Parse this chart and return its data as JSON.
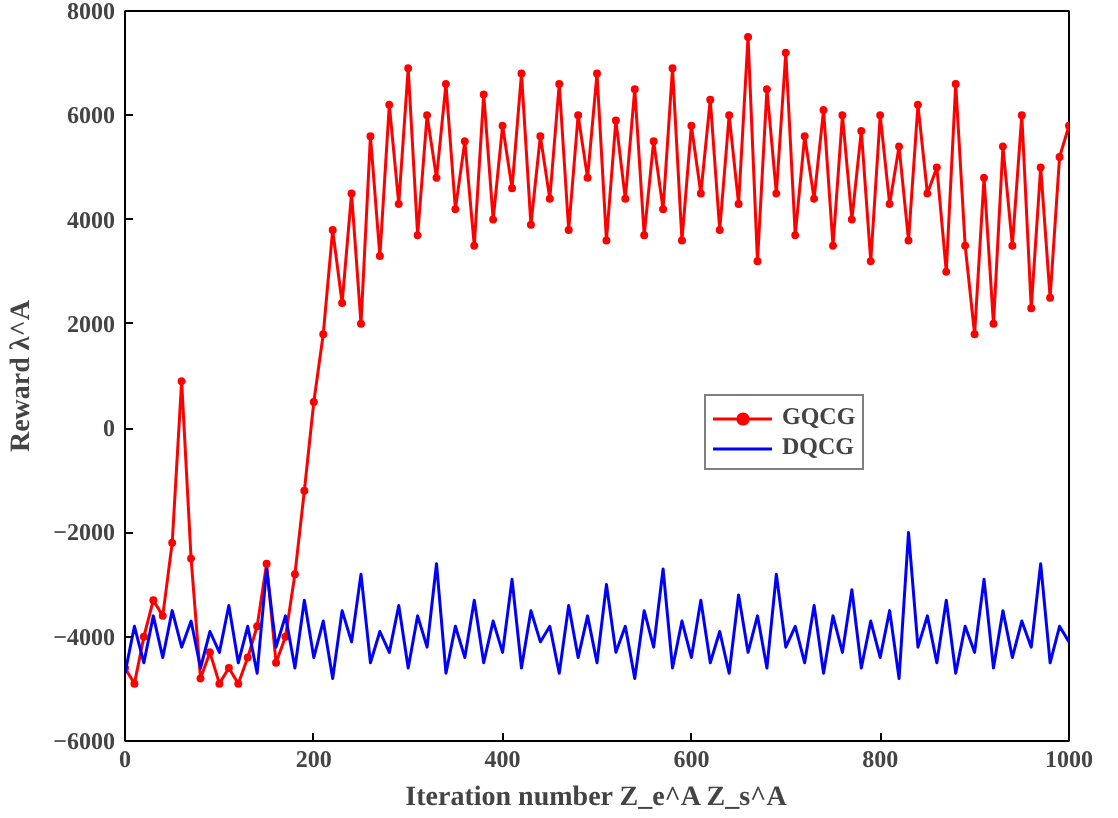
{
  "chart_data": {
    "type": "line",
    "xlabel": "Iteration number Z_e^A Z_s^A",
    "ylabel": "Reward λ^A",
    "x": [
      0,
      10,
      20,
      30,
      40,
      50,
      60,
      70,
      80,
      90,
      100,
      110,
      120,
      130,
      140,
      150,
      160,
      170,
      180,
      190,
      200,
      210,
      220,
      230,
      240,
      250,
      260,
      270,
      280,
      290,
      300,
      310,
      320,
      330,
      340,
      350,
      360,
      370,
      380,
      390,
      400,
      410,
      420,
      430,
      440,
      450,
      460,
      470,
      480,
      490,
      500,
      510,
      520,
      530,
      540,
      550,
      560,
      570,
      580,
      590,
      600,
      610,
      620,
      630,
      640,
      650,
      660,
      670,
      680,
      690,
      700,
      710,
      720,
      730,
      740,
      750,
      760,
      770,
      780,
      790,
      800,
      810,
      820,
      830,
      840,
      850,
      860,
      870,
      880,
      890,
      900,
      910,
      920,
      930,
      940,
      950,
      960,
      970,
      980,
      990,
      1000
    ],
    "series": [
      {
        "name": "GQCG",
        "color": "#ff0000",
        "marker": "circle",
        "values": [
          -4600,
          -4900,
          -4000,
          -3300,
          -3600,
          -2200,
          900,
          -2500,
          -4800,
          -4300,
          -4900,
          -4600,
          -4900,
          -4400,
          -3800,
          -2600,
          -4500,
          -4000,
          -2800,
          -1200,
          500,
          1800,
          3800,
          2400,
          4500,
          2000,
          5600,
          3300,
          6200,
          4300,
          6900,
          3700,
          6000,
          4800,
          6600,
          4200,
          5500,
          3500,
          6400,
          4000,
          5800,
          4600,
          6800,
          3900,
          5600,
          4400,
          6600,
          3800,
          6000,
          4800,
          6800,
          3600,
          5900,
          4400,
          6500,
          3700,
          5500,
          4200,
          6900,
          3600,
          5800,
          4500,
          6300,
          3800,
          6000,
          4300,
          7500,
          3200,
          6500,
          4500,
          7200,
          3700,
          5600,
          4400,
          6100,
          3500,
          6000,
          4000,
          5700,
          3200,
          6000,
          4300,
          5400,
          3600,
          6200,
          4500,
          5000,
          3000,
          6600,
          3500,
          1800,
          4800,
          2000,
          5400,
          3500,
          6000,
          2300,
          5000,
          2500,
          5200,
          5800
        ]
      },
      {
        "name": "DQCG",
        "color": "#0000ff",
        "marker": "none",
        "values": [
          -4700,
          -3800,
          -4500,
          -3600,
          -4400,
          -3500,
          -4200,
          -3700,
          -4600,
          -3900,
          -4300,
          -3400,
          -4500,
          -3800,
          -4700,
          -2700,
          -4200,
          -3600,
          -4600,
          -3300,
          -4400,
          -3700,
          -4800,
          -3500,
          -4100,
          -2800,
          -4500,
          -3900,
          -4300,
          -3400,
          -4600,
          -3600,
          -4200,
          -2600,
          -4700,
          -3800,
          -4400,
          -3300,
          -4500,
          -3700,
          -4300,
          -2900,
          -4600,
          -3500,
          -4100,
          -3800,
          -4700,
          -3400,
          -4400,
          -3600,
          -4500,
          -3000,
          -4300,
          -3800,
          -4800,
          -3500,
          -4200,
          -2700,
          -4600,
          -3700,
          -4400,
          -3300,
          -4500,
          -3900,
          -4700,
          -3200,
          -4300,
          -3600,
          -4600,
          -2800,
          -4200,
          -3800,
          -4500,
          -3400,
          -4700,
          -3600,
          -4300,
          -3100,
          -4600,
          -3700,
          -4400,
          -3500,
          -4800,
          -2000,
          -4200,
          -3600,
          -4500,
          -3300,
          -4700,
          -3800,
          -4300,
          -2900,
          -4600,
          -3500,
          -4400,
          -3700,
          -4200,
          -2600,
          -4500,
          -3800,
          -4100
        ]
      }
    ],
    "xlim": [
      0,
      1000
    ],
    "xticks": [
      0,
      200,
      400,
      600,
      800,
      1000
    ],
    "ylim": [
      -6000,
      8000
    ],
    "yticks": [
      -6000,
      -4000,
      -2000,
      0,
      2000,
      4000,
      6000,
      8000
    ],
    "grid": false,
    "legend": "right"
  }
}
